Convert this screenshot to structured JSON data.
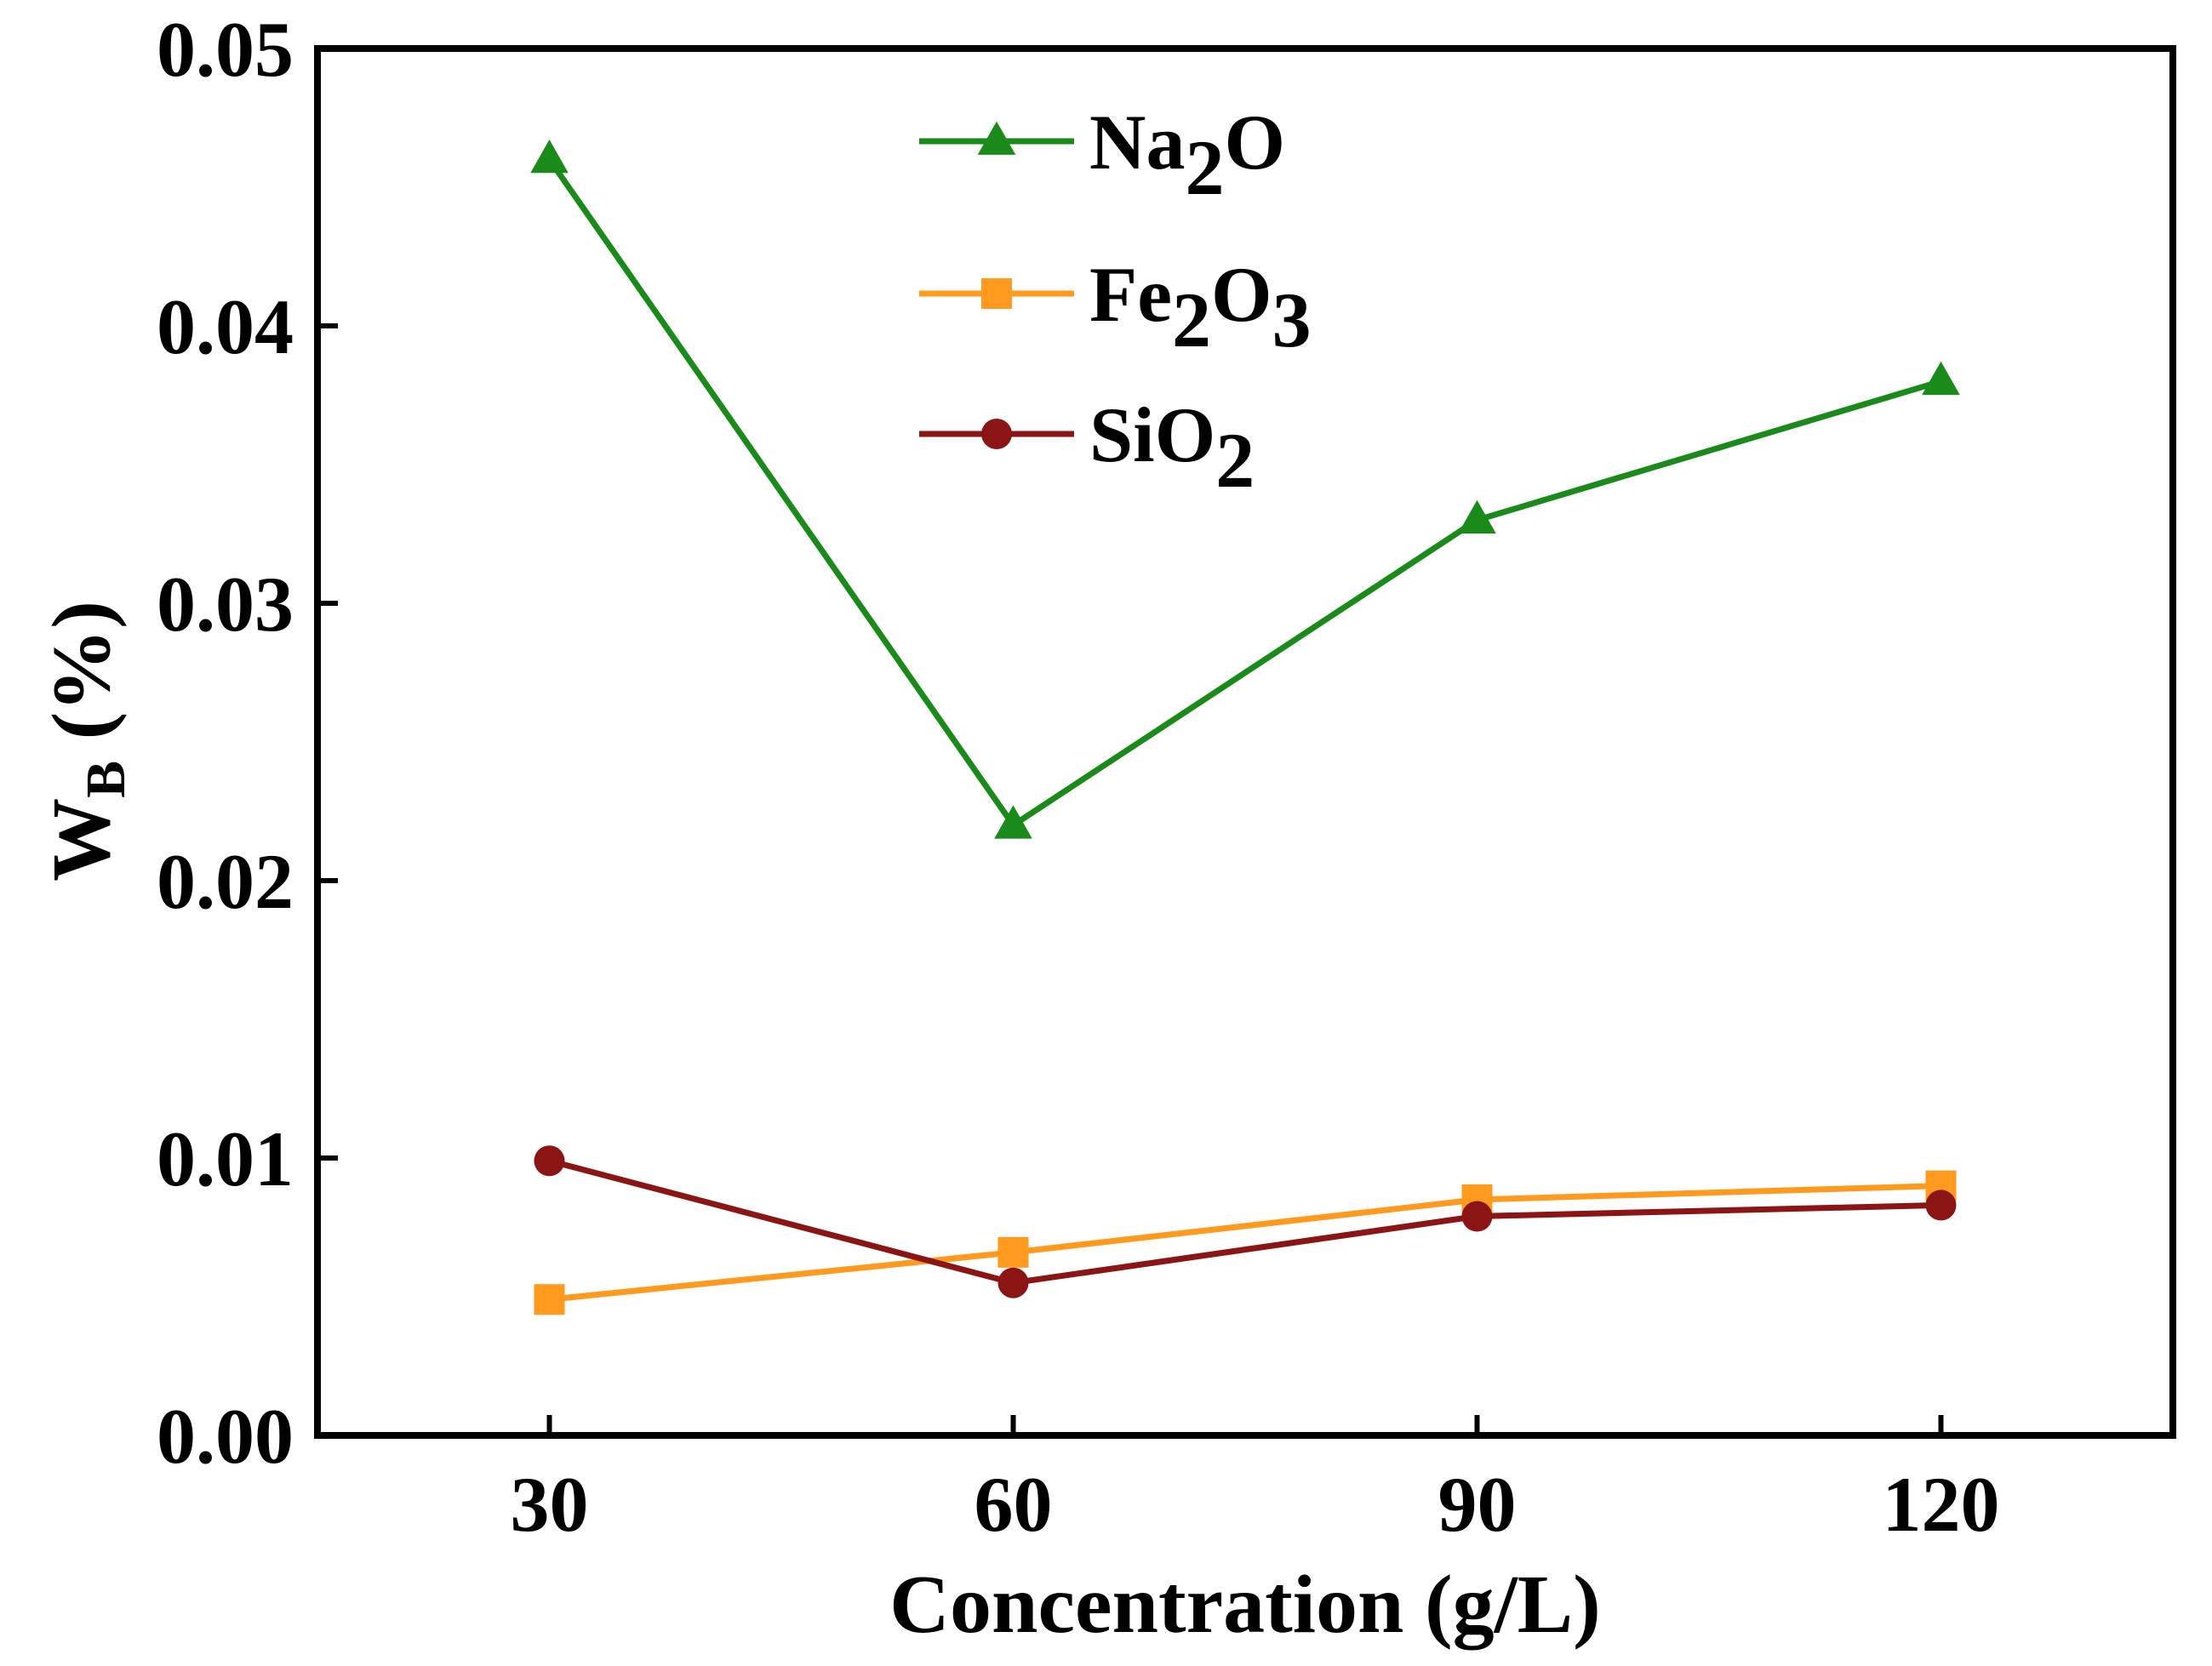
{
  "chart_data": {
    "type": "line",
    "title": "",
    "xlabel": "Concentration (g/L)",
    "ylabel": {
      "main": "W",
      "sub": "B",
      "suffix": " (%)"
    },
    "x": [
      30,
      60,
      90,
      120
    ],
    "xticks": [
      "30",
      "60",
      "90",
      "120"
    ],
    "xlim": [
      15,
      135
    ],
    "yticks": [
      "0.00",
      "0.01",
      "0.02",
      "0.03",
      "0.04",
      "0.05"
    ],
    "ylim": [
      0,
      0.05
    ],
    "grid": false,
    "legend_position": "top-center",
    "series": [
      {
        "name": "Na2O",
        "label_parts": [
          [
            "Na",
            ""
          ],
          [
            "2",
            "sub"
          ],
          [
            "O",
            ""
          ]
        ],
        "color": "#1a8a1a",
        "marker": "triangle",
        "values": [
          0.046,
          0.022,
          0.033,
          0.038
        ]
      },
      {
        "name": "Fe2O3",
        "label_parts": [
          [
            "Fe",
            ""
          ],
          [
            "2",
            "sub"
          ],
          [
            "O",
            ""
          ],
          [
            "3",
            "sub"
          ]
        ],
        "color": "#ff9a1e",
        "marker": "square",
        "values": [
          0.0049,
          0.0066,
          0.0085,
          0.009
        ]
      },
      {
        "name": "SiO2",
        "label_parts": [
          [
            "SiO",
            ""
          ],
          [
            "2",
            "sub"
          ]
        ],
        "color": "#8b1414",
        "marker": "circle",
        "values": [
          0.0099,
          0.0055,
          0.0079,
          0.0083
        ]
      }
    ]
  }
}
